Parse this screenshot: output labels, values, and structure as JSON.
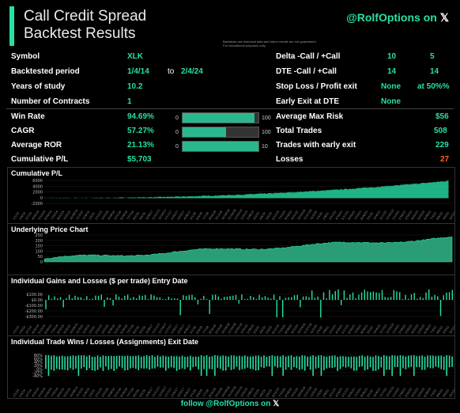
{
  "header": {
    "title_line1": "Call Credit Spread",
    "title_line2": "Backtest Results",
    "disclaimer_line1": "Backtests use historical data and future results are not guaranteed.",
    "disclaimer_line2": "For educational purposes only.",
    "handle": "@RolfOptions on",
    "x_glyph": "𝕏"
  },
  "params_left": {
    "symbol_label": "Symbol",
    "symbol_value": "XLK",
    "period_label": "Backtested period",
    "period_start": "1/4/14",
    "period_to": "to",
    "period_end": "2/4/24",
    "years_label": "Years of study",
    "years_value": "10.2",
    "contracts_label": "Number of Contracts",
    "contracts_value": "1"
  },
  "params_right": {
    "delta_label": "Delta -Call / +Call",
    "delta_short": "10",
    "delta_long": "5",
    "dte_label": "DTE -Call / +Call",
    "dte_short": "14",
    "dte_long": "14",
    "stop_label": "Stop Loss / Profit exit",
    "stop_value": "None",
    "profit_value": "at 50%%",
    "early_label": "Early Exit at DTE",
    "early_value": "None"
  },
  "stats_left": {
    "winrate_label": "Win Rate",
    "winrate_value": "94.69%",
    "cagr_label": "CAGR",
    "cagr_value": "57.27%",
    "ror_label": "Average ROR",
    "ror_value": "21.13%",
    "cumpl_label": "Cumulative P/L",
    "cumpl_value": "$5,703"
  },
  "gauges": [
    {
      "min": "0",
      "max": "100",
      "fraction": 0.9469
    },
    {
      "min": "0",
      "max": "100",
      "fraction": 0.5727
    },
    {
      "min": "0",
      "max": "10",
      "fraction": 1.0
    }
  ],
  "stats_right": {
    "risk_label": "Average Max Risk",
    "risk_value": "$56",
    "trades_label": "Total Trades",
    "trades_value": "508",
    "early_label": "Trades with early exit",
    "early_value": "229",
    "losses_label": "Losses",
    "losses_value": "27"
  },
  "panels": {
    "cumulative_title": "Cumulative P/L",
    "cumulative_ticks": [
      "6000",
      "4000",
      "2000",
      "0",
      "-2000"
    ],
    "price_title": "Underlying Price Chart",
    "price_ticks": [
      "250",
      "200",
      "150",
      "100",
      "50",
      "0"
    ],
    "gains_title": "Individual Gains and Losses ($ per trade) Entry Date",
    "gains_ticks": [
      "$100.00",
      "$0.00",
      "-$100.00",
      "-$200.00",
      "-$300.00"
    ],
    "wins_title": "Individual Trade Wins / Losses (Assignments) Exit Date",
    "wins_ticks": [
      "80%",
      "60%",
      "40%",
      "20%",
      "0%",
      "-20%",
      "-40%"
    ]
  },
  "colors": {
    "accent": "#27e0a6",
    "loss": "#ff6a1a"
  },
  "footer": {
    "text": "follow @RolfOptions on",
    "x_glyph": "𝕏"
  }
}
